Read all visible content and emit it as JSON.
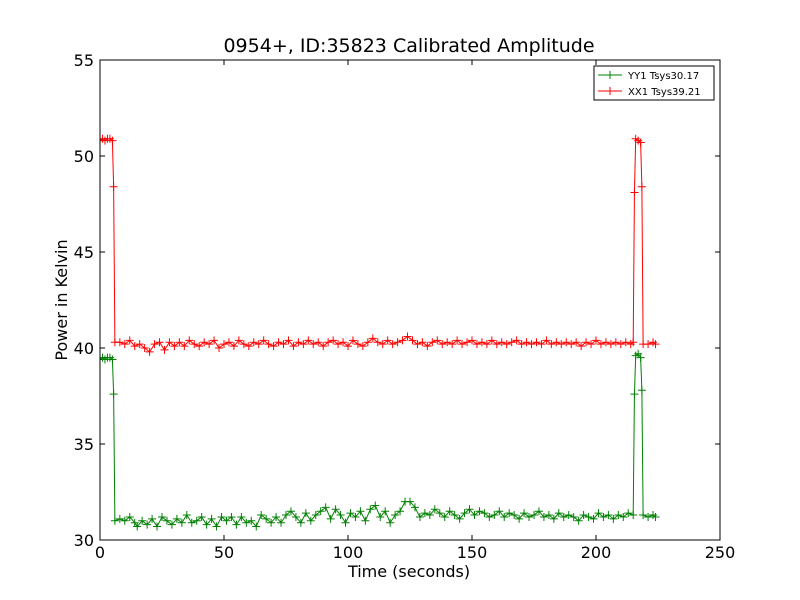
{
  "chart_data": {
    "type": "line",
    "title": "0954+, ID:35823 Calibrated Amplitude",
    "xlabel": "Time (seconds)",
    "ylabel": "Power in Kelvin",
    "xlim": [
      0,
      250
    ],
    "ylim": [
      30,
      55
    ],
    "xticks": [
      "0",
      "50",
      "100",
      "150",
      "200",
      "250"
    ],
    "yticks": [
      "30",
      "35",
      "40",
      "45",
      "50",
      "55"
    ],
    "grid": false,
    "legend_position": "top-right",
    "markers": "plus",
    "series": [
      {
        "name": "YY1 Tsys30.17",
        "color": "#008000",
        "points": [
          [
            0,
            39.4
          ],
          [
            1,
            39.5
          ],
          [
            2,
            39.4
          ],
          [
            3,
            39.5
          ],
          [
            4,
            39.5
          ],
          [
            5,
            39.4
          ],
          [
            5.5,
            37.6
          ],
          [
            6,
            31.0
          ],
          [
            8,
            31.1
          ],
          [
            10,
            31.0
          ],
          [
            12,
            31.2
          ],
          [
            14,
            30.9
          ],
          [
            15,
            30.7
          ],
          [
            17,
            31.0
          ],
          [
            19,
            30.8
          ],
          [
            21,
            31.1
          ],
          [
            23,
            30.7
          ],
          [
            25,
            31.2
          ],
          [
            27,
            31.0
          ],
          [
            29,
            30.8
          ],
          [
            31,
            31.1
          ],
          [
            33,
            30.9
          ],
          [
            35,
            31.3
          ],
          [
            37,
            30.9
          ],
          [
            39,
            31.0
          ],
          [
            41,
            31.2
          ],
          [
            43,
            30.8
          ],
          [
            45,
            31.1
          ],
          [
            47,
            30.7
          ],
          [
            49,
            31.2
          ],
          [
            51,
            31.0
          ],
          [
            53,
            31.2
          ],
          [
            55,
            30.8
          ],
          [
            57,
            31.2
          ],
          [
            59,
            30.9
          ],
          [
            61,
            31.0
          ],
          [
            63,
            30.7
          ],
          [
            65,
            31.3
          ],
          [
            67,
            31.1
          ],
          [
            69,
            30.9
          ],
          [
            71,
            31.2
          ],
          [
            73,
            30.9
          ],
          [
            75,
            31.3
          ],
          [
            77,
            31.5
          ],
          [
            79,
            31.2
          ],
          [
            81,
            30.9
          ],
          [
            83,
            31.4
          ],
          [
            85,
            31.0
          ],
          [
            87,
            31.3
          ],
          [
            89,
            31.5
          ],
          [
            91,
            31.7
          ],
          [
            93,
            31.1
          ],
          [
            95,
            31.6
          ],
          [
            97,
            31.3
          ],
          [
            99,
            30.9
          ],
          [
            101,
            31.4
          ],
          [
            103,
            31.2
          ],
          [
            105,
            31.5
          ],
          [
            107,
            31.0
          ],
          [
            109,
            31.6
          ],
          [
            111,
            31.8
          ],
          [
            113,
            31.2
          ],
          [
            115,
            31.5
          ],
          [
            117,
            30.9
          ],
          [
            119,
            31.3
          ],
          [
            121,
            31.5
          ],
          [
            123,
            32.0
          ],
          [
            125,
            32.0
          ],
          [
            127,
            31.7
          ],
          [
            129,
            31.2
          ],
          [
            131,
            31.4
          ],
          [
            133,
            31.3
          ],
          [
            135,
            31.6
          ],
          [
            137,
            31.4
          ],
          [
            139,
            31.2
          ],
          [
            141,
            31.5
          ],
          [
            143,
            31.3
          ],
          [
            145,
            31.1
          ],
          [
            147,
            31.4
          ],
          [
            149,
            31.6
          ],
          [
            151,
            31.3
          ],
          [
            153,
            31.5
          ],
          [
            155,
            31.4
          ],
          [
            157,
            31.2
          ],
          [
            159,
            31.3
          ],
          [
            161,
            31.5
          ],
          [
            163,
            31.2
          ],
          [
            165,
            31.4
          ],
          [
            167,
            31.3
          ],
          [
            169,
            31.1
          ],
          [
            171,
            31.4
          ],
          [
            173,
            31.2
          ],
          [
            175,
            31.3
          ],
          [
            177,
            31.5
          ],
          [
            179,
            31.2
          ],
          [
            181,
            31.3
          ],
          [
            183,
            31.1
          ],
          [
            185,
            31.4
          ],
          [
            187,
            31.2
          ],
          [
            189,
            31.3
          ],
          [
            191,
            31.2
          ],
          [
            193,
            31.0
          ],
          [
            195,
            31.3
          ],
          [
            197,
            31.2
          ],
          [
            199,
            31.1
          ],
          [
            201,
            31.4
          ],
          [
            203,
            31.2
          ],
          [
            205,
            31.3
          ],
          [
            207,
            31.1
          ],
          [
            209,
            31.3
          ],
          [
            211,
            31.2
          ],
          [
            213,
            31.4
          ],
          [
            215,
            31.3
          ],
          [
            215.5,
            37.6
          ],
          [
            216,
            39.6
          ],
          [
            217,
            39.7
          ],
          [
            218,
            39.5
          ],
          [
            218.5,
            37.8
          ],
          [
            219,
            31.3
          ],
          [
            221,
            31.2
          ],
          [
            223,
            31.3
          ],
          [
            224,
            31.2
          ]
        ]
      },
      {
        "name": "XX1 Tsys39.21",
        "color": "#ff0000",
        "points": [
          [
            0,
            50.8
          ],
          [
            1,
            50.9
          ],
          [
            2,
            50.8
          ],
          [
            3,
            50.9
          ],
          [
            4,
            50.9
          ],
          [
            5,
            50.8
          ],
          [
            5.5,
            48.4
          ],
          [
            6,
            40.3
          ],
          [
            8,
            40.3
          ],
          [
            10,
            40.2
          ],
          [
            12,
            40.4
          ],
          [
            14,
            40.1
          ],
          [
            16,
            40.2
          ],
          [
            18,
            40.0
          ],
          [
            20,
            39.8
          ],
          [
            22,
            40.2
          ],
          [
            24,
            40.3
          ],
          [
            26,
            39.9
          ],
          [
            28,
            40.3
          ],
          [
            30,
            40.1
          ],
          [
            32,
            40.3
          ],
          [
            34,
            40.1
          ],
          [
            36,
            40.4
          ],
          [
            38,
            40.2
          ],
          [
            40,
            40.1
          ],
          [
            42,
            40.3
          ],
          [
            44,
            40.2
          ],
          [
            46,
            40.4
          ],
          [
            48,
            40.0
          ],
          [
            50,
            40.2
          ],
          [
            52,
            40.3
          ],
          [
            54,
            40.1
          ],
          [
            56,
            40.4
          ],
          [
            58,
            40.2
          ],
          [
            60,
            40.1
          ],
          [
            62,
            40.3
          ],
          [
            64,
            40.2
          ],
          [
            66,
            40.4
          ],
          [
            68,
            40.2
          ],
          [
            70,
            40.1
          ],
          [
            72,
            40.3
          ],
          [
            74,
            40.2
          ],
          [
            76,
            40.4
          ],
          [
            78,
            40.1
          ],
          [
            80,
            40.3
          ],
          [
            82,
            40.2
          ],
          [
            84,
            40.4
          ],
          [
            86,
            40.2
          ],
          [
            88,
            40.3
          ],
          [
            90,
            40.1
          ],
          [
            92,
            40.3
          ],
          [
            94,
            40.4
          ],
          [
            96,
            40.2
          ],
          [
            98,
            40.3
          ],
          [
            100,
            40.1
          ],
          [
            102,
            40.4
          ],
          [
            104,
            40.2
          ],
          [
            106,
            40.1
          ],
          [
            108,
            40.3
          ],
          [
            110,
            40.5
          ],
          [
            112,
            40.3
          ],
          [
            114,
            40.2
          ],
          [
            116,
            40.4
          ],
          [
            118,
            40.2
          ],
          [
            120,
            40.3
          ],
          [
            122,
            40.4
          ],
          [
            124,
            40.6
          ],
          [
            126,
            40.4
          ],
          [
            128,
            40.2
          ],
          [
            130,
            40.3
          ],
          [
            132,
            40.1
          ],
          [
            134,
            40.3
          ],
          [
            136,
            40.4
          ],
          [
            138,
            40.2
          ],
          [
            140,
            40.3
          ],
          [
            142,
            40.2
          ],
          [
            144,
            40.4
          ],
          [
            146,
            40.2
          ],
          [
            148,
            40.3
          ],
          [
            150,
            40.4
          ],
          [
            152,
            40.2
          ],
          [
            154,
            40.3
          ],
          [
            156,
            40.2
          ],
          [
            158,
            40.4
          ],
          [
            160,
            40.2
          ],
          [
            162,
            40.3
          ],
          [
            164,
            40.2
          ],
          [
            166,
            40.3
          ],
          [
            168,
            40.4
          ],
          [
            170,
            40.2
          ],
          [
            172,
            40.3
          ],
          [
            174,
            40.2
          ],
          [
            176,
            40.3
          ],
          [
            178,
            40.2
          ],
          [
            180,
            40.4
          ],
          [
            182,
            40.2
          ],
          [
            184,
            40.3
          ],
          [
            186,
            40.2
          ],
          [
            188,
            40.3
          ],
          [
            190,
            40.2
          ],
          [
            192,
            40.3
          ],
          [
            194,
            40.1
          ],
          [
            196,
            40.3
          ],
          [
            198,
            40.2
          ],
          [
            200,
            40.4
          ],
          [
            202,
            40.2
          ],
          [
            204,
            40.3
          ],
          [
            206,
            40.2
          ],
          [
            208,
            40.3
          ],
          [
            210,
            40.2
          ],
          [
            212,
            40.3
          ],
          [
            214,
            40.2
          ],
          [
            215,
            40.3
          ],
          [
            215.5,
            48.1
          ],
          [
            216,
            50.9
          ],
          [
            217,
            50.8
          ],
          [
            218,
            50.7
          ],
          [
            218.5,
            48.4
          ],
          [
            219,
            40.2
          ],
          [
            221,
            40.2
          ],
          [
            223,
            40.3
          ],
          [
            224,
            40.2
          ]
        ]
      }
    ]
  }
}
